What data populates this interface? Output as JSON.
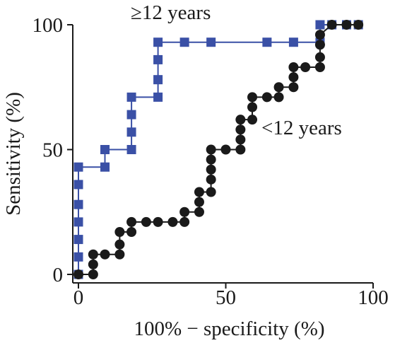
{
  "chart_data": {
    "type": "line",
    "title": "",
    "xlabel": "100% − specificity (%)",
    "ylabel": "Sensitivity (%)",
    "xlim": [
      0,
      100
    ],
    "ylim": [
      0,
      100
    ],
    "x_ticks": [
      "0",
      "50",
      "100"
    ],
    "y_ticks": [
      "0",
      "50",
      "100"
    ],
    "grid": false,
    "legend": "none",
    "series": [
      {
        "name": "≥12 years",
        "color": "#3a50a6",
        "marker": "square",
        "points": [
          [
            0,
            0
          ],
          [
            0,
            7
          ],
          [
            0,
            14
          ],
          [
            0,
            21
          ],
          [
            0,
            28
          ],
          [
            0,
            36
          ],
          [
            0,
            43
          ],
          [
            9,
            43
          ],
          [
            9,
            50
          ],
          [
            18,
            50
          ],
          [
            18,
            57
          ],
          [
            18,
            64
          ],
          [
            18,
            71
          ],
          [
            27,
            71
          ],
          [
            27,
            78
          ],
          [
            27,
            86
          ],
          [
            27,
            93
          ],
          [
            36,
            93
          ],
          [
            45,
            93
          ],
          [
            64,
            93
          ],
          [
            73,
            93
          ],
          [
            82,
            93
          ],
          [
            82,
            100
          ],
          [
            86,
            100
          ],
          [
            91,
            100
          ],
          [
            95,
            100
          ]
        ]
      },
      {
        "name": "<12 years",
        "color": "#1a1a1a",
        "marker": "circle",
        "points": [
          [
            0,
            0
          ],
          [
            5,
            0
          ],
          [
            5,
            4
          ],
          [
            5,
            8
          ],
          [
            9,
            8
          ],
          [
            14,
            8
          ],
          [
            14,
            12
          ],
          [
            14,
            17
          ],
          [
            18,
            17
          ],
          [
            18,
            21
          ],
          [
            23,
            21
          ],
          [
            27,
            21
          ],
          [
            32,
            21
          ],
          [
            36,
            21
          ],
          [
            36,
            25
          ],
          [
            41,
            25
          ],
          [
            41,
            29
          ],
          [
            41,
            33
          ],
          [
            45,
            33
          ],
          [
            45,
            38
          ],
          [
            45,
            42
          ],
          [
            45,
            46
          ],
          [
            45,
            50
          ],
          [
            50,
            50
          ],
          [
            55,
            50
          ],
          [
            55,
            54
          ],
          [
            55,
            58
          ],
          [
            55,
            62
          ],
          [
            59,
            62
          ],
          [
            59,
            67
          ],
          [
            59,
            71
          ],
          [
            64,
            71
          ],
          [
            68,
            71
          ],
          [
            68,
            75
          ],
          [
            73,
            75
          ],
          [
            73,
            79
          ],
          [
            73,
            83
          ],
          [
            77,
            83
          ],
          [
            82,
            83
          ],
          [
            82,
            87
          ],
          [
            82,
            92
          ],
          [
            82,
            96
          ],
          [
            86,
            100
          ],
          [
            91,
            100
          ],
          [
            95,
            100
          ]
        ]
      }
    ]
  }
}
